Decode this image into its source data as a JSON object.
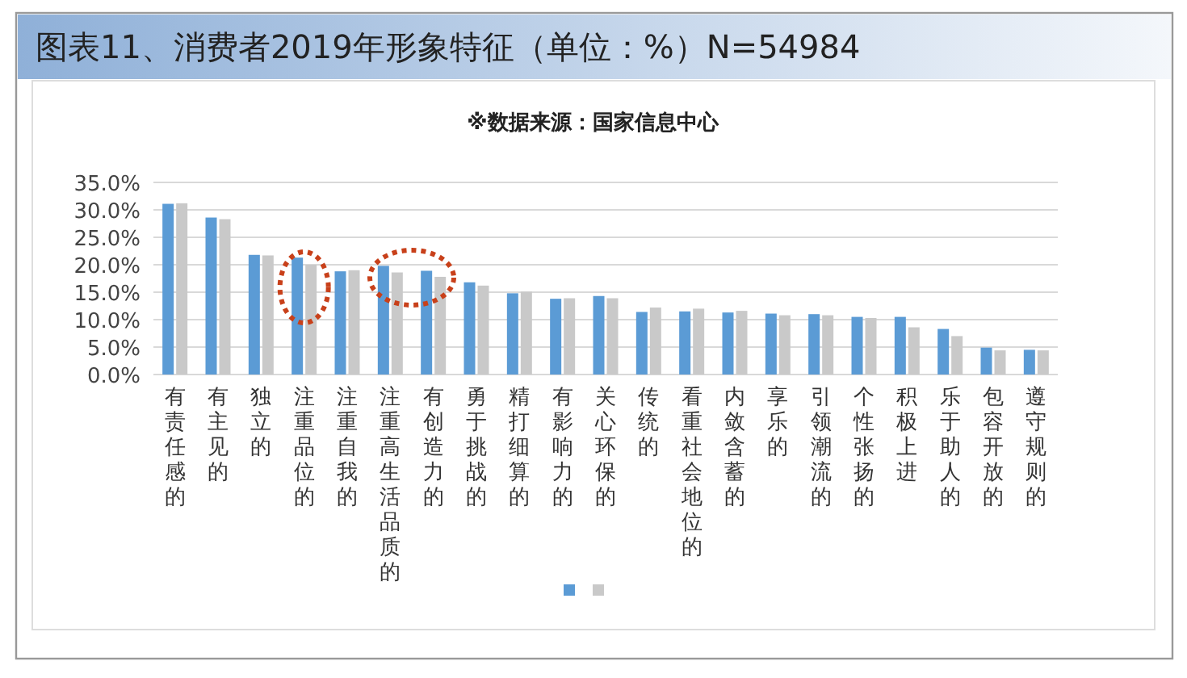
{
  "chart_data": {
    "type": "bar",
    "title": "图表11、消费者2019年形象特征（单位：%）N=54984",
    "subtitle": "※数据来源：国家信息中心",
    "categories": [
      "有责任感的",
      "有主见的",
      "独立的",
      "注重品位的",
      "注重自我的",
      "注重高生活品质的",
      "有创造力的",
      "勇于挑战的",
      "精打细算的",
      "有影响力的",
      "关心环保的",
      "传统的",
      "看重社会地位的",
      "内敛含蓄的",
      "享乐的",
      "引领潮流的",
      "个性张扬的",
      "积极上进",
      "乐于助人的",
      "包容开放的",
      "遵守规则的"
    ],
    "series": [
      {
        "color": "#5b9bd5",
        "values": [
          31.1,
          28.6,
          21.8,
          21.3,
          18.8,
          19.8,
          18.9,
          16.8,
          14.8,
          13.8,
          14.3,
          11.4,
          11.5,
          11.3,
          11.1,
          11.0,
          10.5,
          10.5,
          8.3,
          4.9,
          4.5
        ]
      },
      {
        "color": "#c9c9c9",
        "values": [
          31.2,
          28.3,
          21.7,
          20.0,
          19.0,
          18.6,
          17.8,
          16.2,
          15.1,
          13.9,
          13.9,
          12.2,
          12.0,
          11.6,
          10.8,
          10.8,
          10.3,
          8.6,
          7.0,
          4.4,
          4.4
        ]
      }
    ],
    "ylim": [
      0,
      35
    ],
    "yticks": [
      {
        "value": 0,
        "label": "0.0%"
      },
      {
        "value": 5,
        "label": "5.0%"
      },
      {
        "value": 10,
        "label": "10.0%"
      },
      {
        "value": 15,
        "label": "15.0%"
      },
      {
        "value": 20,
        "label": "20.0%"
      },
      {
        "value": 25,
        "label": "25.0%"
      },
      {
        "value": 30,
        "label": "30.0%"
      },
      {
        "value": 35,
        "label": "35.0%"
      }
    ],
    "grid": "y"
  }
}
